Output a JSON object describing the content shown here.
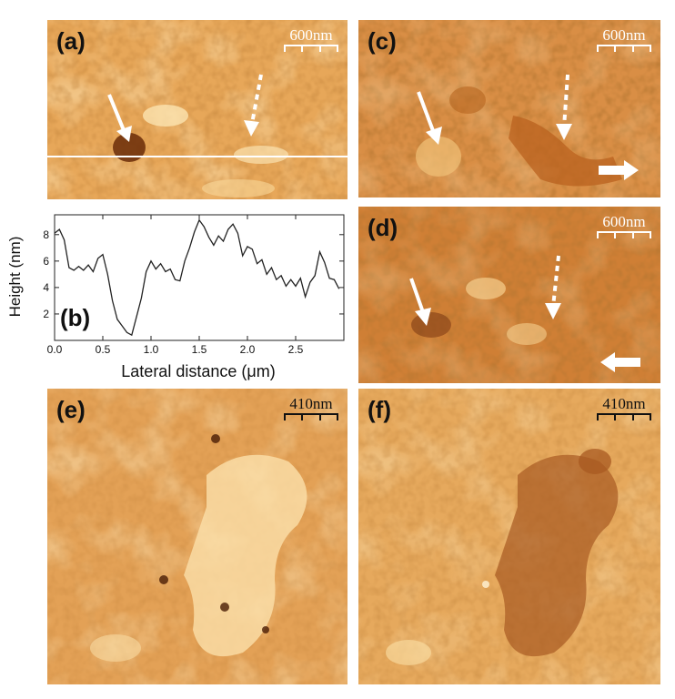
{
  "panels": {
    "a": {
      "label": "(a)",
      "scale": "600nm"
    },
    "c": {
      "label": "(c)",
      "scale": "600nm"
    },
    "d": {
      "label": "(d)",
      "scale": "600nm"
    },
    "e": {
      "label": "(e)",
      "scale": "410nm"
    },
    "f": {
      "label": "(f)",
      "scale": "410nm"
    }
  },
  "colors": {
    "afm_light": "#f2c27a",
    "afm_mid": "#d88a3a",
    "afm_dark": "#7a3a10",
    "line": "#222222"
  },
  "chart_data": {
    "type": "line",
    "label": "(b)",
    "xlabel": "Lateral distance (μm)",
    "ylabel": "Height (nm)",
    "xlim": [
      0,
      3.0
    ],
    "ylim": [
      0,
      9.5
    ],
    "xticks": [
      "0.0",
      "0.5",
      "1.0",
      "1.5",
      "2.0",
      "2.5"
    ],
    "yticks": [
      "2",
      "4",
      "6",
      "8"
    ],
    "x": [
      0.0,
      0.05,
      0.1,
      0.15,
      0.2,
      0.25,
      0.3,
      0.35,
      0.4,
      0.45,
      0.5,
      0.55,
      0.6,
      0.65,
      0.7,
      0.75,
      0.8,
      0.85,
      0.9,
      0.95,
      1.0,
      1.05,
      1.1,
      1.15,
      1.2,
      1.25,
      1.3,
      1.35,
      1.4,
      1.45,
      1.5,
      1.55,
      1.6,
      1.65,
      1.7,
      1.75,
      1.8,
      1.85,
      1.9,
      1.95,
      2.0,
      2.05,
      2.1,
      2.15,
      2.2,
      2.25,
      2.3,
      2.35,
      2.4,
      2.45,
      2.5,
      2.55,
      2.6,
      2.65,
      2.7,
      2.75,
      2.8,
      2.85,
      2.9,
      2.95
    ],
    "y": [
      8.1,
      8.4,
      7.6,
      5.5,
      5.3,
      5.6,
      5.3,
      5.7,
      5.2,
      6.2,
      6.5,
      5.0,
      3.0,
      1.6,
      1.1,
      0.6,
      0.4,
      1.8,
      3.2,
      5.2,
      6.0,
      5.4,
      5.8,
      5.2,
      5.4,
      4.6,
      4.5,
      6.0,
      7.0,
      8.2,
      9.1,
      8.6,
      7.8,
      7.2,
      7.9,
      7.5,
      8.4,
      8.8,
      8.1,
      6.4,
      7.1,
      6.9,
      5.8,
      6.1,
      5.0,
      5.5,
      4.6,
      4.9,
      4.1,
      4.6,
      4.1,
      4.7,
      3.3,
      4.4,
      4.9,
      6.7,
      5.9,
      4.7,
      4.6,
      3.9
    ]
  }
}
